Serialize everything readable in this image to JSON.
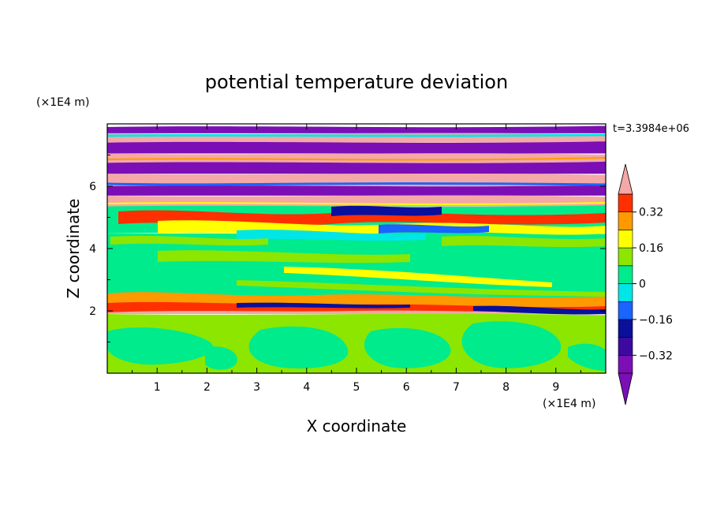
{
  "chart_data": {
    "type": "heatmap",
    "title": "potential temperature deviation",
    "xlabel": "X coordinate",
    "ylabel": "Z coordinate",
    "x_unit": "(×1E4 m)",
    "y_unit": "(×1E4 m)",
    "time_label": "t=3.3984e+06",
    "xlim": [
      0,
      10
    ],
    "ylim": [
      0,
      8
    ],
    "x_ticks": [
      "1",
      "2",
      "3",
      "4",
      "5",
      "6",
      "7",
      "8",
      "9"
    ],
    "y_ticks": [
      "2",
      "4",
      "6"
    ],
    "colorbar": {
      "levels": [
        -0.4,
        -0.32,
        -0.24,
        -0.16,
        -0.08,
        0,
        0.08,
        0.16,
        0.24,
        0.32,
        0.4
      ],
      "labels": [
        "0.32",
        "0.16",
        "0",
        "−0.16",
        "−0.32"
      ],
      "label_values": [
        0.32,
        0.16,
        0,
        -0.16,
        -0.32
      ],
      "colors": [
        "#7b0fb5",
        "#3c0aa0",
        "#0a0f9c",
        "#1a64ff",
        "#00e6e6",
        "#00eb8c",
        "#8ce600",
        "#ffff00",
        "#ff9900",
        "#ff3000",
        "#f4a8a8"
      ],
      "extend": "both"
    },
    "layers": [
      {
        "z": [
          7.7,
          7.9
        ],
        "value": "high",
        "color": "#7b0fb5"
      },
      {
        "z": [
          7.4,
          7.7
        ],
        "value": "above 0.4",
        "color": "#f4a8a8"
      },
      {
        "z": [
          7.05,
          7.4
        ],
        "value": "below -0.4",
        "color": "#7b0fb5"
      },
      {
        "z": [
          6.75,
          7.05
        ],
        "value": "above 0.4",
        "color": "#f4a8a8"
      },
      {
        "z": [
          6.4,
          6.75
        ],
        "value": "below -0.4",
        "color": "#7b0fb5"
      },
      {
        "z": [
          6.0,
          6.4
        ],
        "value": "above 0.4",
        "color": "#f4a8a8"
      },
      {
        "z": [
          5.7,
          6.0
        ],
        "value": "below -0.4",
        "color": "#7b0fb5"
      },
      {
        "z": [
          5.35,
          5.7
        ],
        "value": "above 0.4",
        "color": "#f4a8a8"
      },
      {
        "z": [
          4.5,
          5.35
        ],
        "value": "mixed",
        "color": "#00eb8c"
      },
      {
        "z": [
          2.2,
          4.5
        ],
        "value": "near 0",
        "color": "#00eb8c"
      },
      {
        "z": [
          1.9,
          2.2
        ],
        "value": "mixed",
        "color": "#f4a8a8"
      },
      {
        "z": [
          0,
          1.9
        ],
        "value": "0 to 0.08",
        "color": "#8ce600"
      }
    ]
  }
}
